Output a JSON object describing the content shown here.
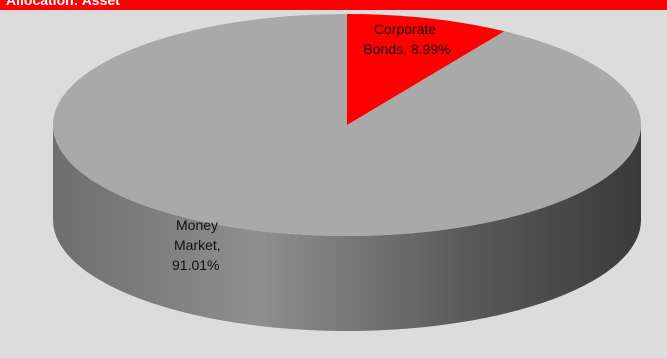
{
  "header": {
    "title": "Allocation: Asset"
  },
  "colors": {
    "money_market_top": "#a9a9a9",
    "corporate_bonds": "#ff0000",
    "side_light": "#8a8a8a",
    "side_dark": "#404040",
    "header_bar": "#ff0000"
  },
  "chart_data": {
    "type": "pie",
    "style": "3d",
    "title": "",
    "slices": [
      {
        "label_line1": "Corporate",
        "label_line2": "Bonds, 8.99%",
        "name": "Corporate Bonds",
        "value": 8.99,
        "color": "#ff0000"
      },
      {
        "label_line1": "Money",
        "label_line2": "Market,",
        "label_line3": "91.01%",
        "name": "Money Market",
        "value": 91.01,
        "color": "#a9a9a9"
      }
    ]
  }
}
